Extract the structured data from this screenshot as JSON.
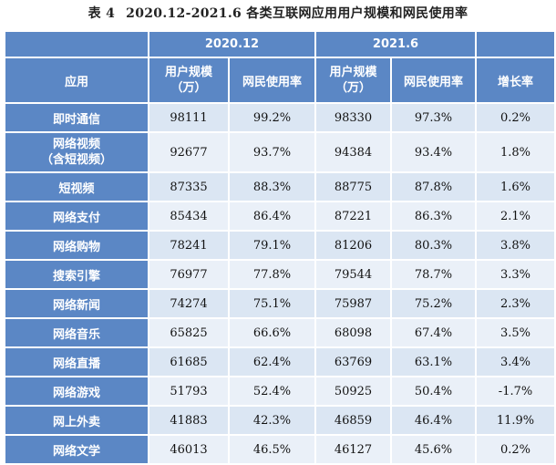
{
  "caption": {
    "label": "表 4",
    "title": "2020.12-2021.6 各类互联网应用用户规模和网民使用率"
  },
  "header": {
    "period_1": "2020.12",
    "period_2": "2021.6",
    "app_col": "应用",
    "users_line1": "用户规模",
    "users_line2": "（万）",
    "rate": "网民使用率",
    "growth": "增长率"
  },
  "rows": [
    {
      "app": "即时通信",
      "users_2020": "98111",
      "rate_2020": "99.2%",
      "users_2021": "98330",
      "rate_2021": "97.3%",
      "growth": "0.2%"
    },
    {
      "app": "网络视频",
      "app_line2": "（含短视频）",
      "users_2020": "92677",
      "rate_2020": "93.7%",
      "users_2021": "94384",
      "rate_2021": "93.4%",
      "growth": "1.8%"
    },
    {
      "app": "短视频",
      "users_2020": "87335",
      "rate_2020": "88.3%",
      "users_2021": "88775",
      "rate_2021": "87.8%",
      "growth": "1.6%"
    },
    {
      "app": "网络支付",
      "users_2020": "85434",
      "rate_2020": "86.4%",
      "users_2021": "87221",
      "rate_2021": "86.3%",
      "growth": "2.1%"
    },
    {
      "app": "网络购物",
      "users_2020": "78241",
      "rate_2020": "79.1%",
      "users_2021": "81206",
      "rate_2021": "80.3%",
      "growth": "3.8%"
    },
    {
      "app": "搜索引擎",
      "users_2020": "76977",
      "rate_2020": "77.8%",
      "users_2021": "79544",
      "rate_2021": "78.7%",
      "growth": "3.3%"
    },
    {
      "app": "网络新闻",
      "users_2020": "74274",
      "rate_2020": "75.1%",
      "users_2021": "75987",
      "rate_2021": "75.2%",
      "growth": "2.3%"
    },
    {
      "app": "网络音乐",
      "users_2020": "65825",
      "rate_2020": "66.6%",
      "users_2021": "68098",
      "rate_2021": "67.4%",
      "growth": "3.5%"
    },
    {
      "app": "网络直播",
      "users_2020": "61685",
      "rate_2020": "62.4%",
      "users_2021": "63769",
      "rate_2021": "63.1%",
      "growth": "3.4%"
    },
    {
      "app": "网络游戏",
      "users_2020": "51793",
      "rate_2020": "52.4%",
      "users_2021": "50925",
      "rate_2021": "50.4%",
      "growth": "-1.7%"
    },
    {
      "app": "网上外卖",
      "users_2020": "41883",
      "rate_2020": "42.3%",
      "users_2021": "46859",
      "rate_2021": "46.4%",
      "growth": "11.9%"
    },
    {
      "app": "网络文学",
      "users_2020": "46013",
      "rate_2020": "46.5%",
      "users_2021": "46127",
      "rate_2021": "45.6%",
      "growth": "0.2%"
    }
  ],
  "colors": {
    "header_bg": "#5b87c5",
    "cell_bg": "#dbe6f3",
    "cell_bg_alt": "#eaf0f8"
  }
}
